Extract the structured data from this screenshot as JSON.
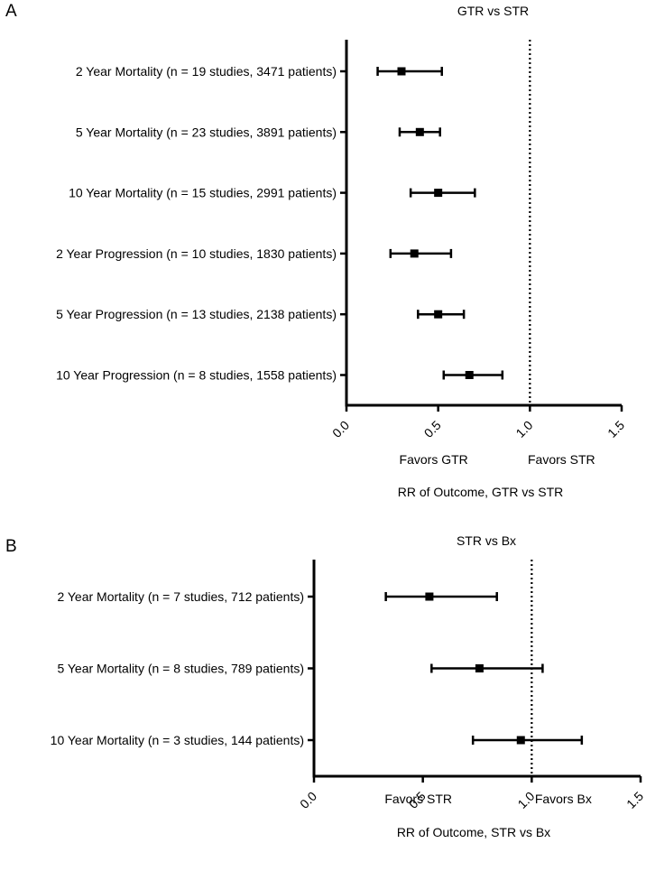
{
  "chart_data": [
    {
      "panel": "A",
      "type": "forest",
      "title": "GTR vs STR",
      "xlabel": "RR of Outcome, GTR vs STR",
      "xlim": [
        0,
        1.5
      ],
      "xticks": [
        "0.0",
        "0.5",
        "1.0",
        "1.5"
      ],
      "reference_line": 1.0,
      "favors_left": "Favors GTR",
      "favors_right": "Favors STR",
      "rows": [
        {
          "label": "2 Year Mortality (n = 19 studies, 3471 patients)",
          "estimate": 0.3,
          "lower": 0.17,
          "upper": 0.52
        },
        {
          "label": "5 Year Mortality (n = 23 studies, 3891 patients)",
          "estimate": 0.4,
          "lower": 0.29,
          "upper": 0.51
        },
        {
          "label": "10 Year Mortality (n = 15 studies, 2991 patients)",
          "estimate": 0.5,
          "lower": 0.35,
          "upper": 0.7
        },
        {
          "label": "2 Year Progression (n = 10 studies, 1830 patients)",
          "estimate": 0.37,
          "lower": 0.24,
          "upper": 0.57
        },
        {
          "label": "5 Year Progression (n = 13 studies, 2138 patients)",
          "estimate": 0.5,
          "lower": 0.39,
          "upper": 0.64
        },
        {
          "label": "10 Year Progression (n = 8 studies, 1558 patients)",
          "estimate": 0.67,
          "lower": 0.53,
          "upper": 0.85
        }
      ]
    },
    {
      "panel": "B",
      "type": "forest",
      "title": "STR vs Bx",
      "xlabel": "RR of Outcome, STR vs Bx",
      "xlim": [
        0,
        1.5
      ],
      "xticks": [
        "0.0",
        "0.5",
        "1.0",
        "1.5"
      ],
      "reference_line": 1.0,
      "favors_left": "Favors STR",
      "favors_right": "Favors Bx",
      "rows": [
        {
          "label": "2 Year Mortality (n = 7 studies, 712 patients)",
          "estimate": 0.53,
          "lower": 0.33,
          "upper": 0.84
        },
        {
          "label": "5 Year Mortality (n = 8 studies, 789 patients)",
          "estimate": 0.76,
          "lower": 0.54,
          "upper": 1.05
        },
        {
          "label": "10 Year Mortality (n = 3 studies, 144 patients)",
          "estimate": 0.95,
          "lower": 0.73,
          "upper": 1.23
        }
      ]
    }
  ]
}
